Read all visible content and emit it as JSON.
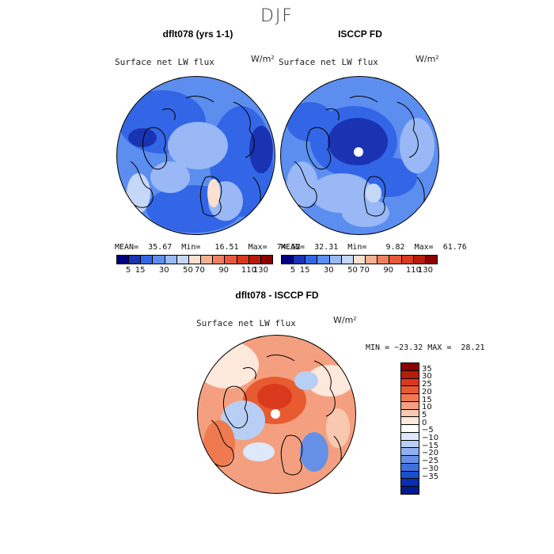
{
  "figure_title": "DJF",
  "units_label": "W/m²",
  "chart_data": [
    {
      "type": "heatmap",
      "projection": "north-polar-stereographic",
      "title": "dflt078 (yrs 1-1)",
      "variable": "Surface net LW flux",
      "units": "W/m²",
      "stats": {
        "mean": 35.67,
        "min": 16.51,
        "max": 74.52
      },
      "stats_text": "MEAN=  35.67  Min=   16.51  Max=  74.52",
      "colorbar_levels": [
        5,
        15,
        30,
        50,
        70,
        90,
        110,
        130
      ],
      "dominant_range": [
        30,
        50
      ]
    },
    {
      "type": "heatmap",
      "projection": "north-polar-stereographic",
      "title": "ISCCP FD",
      "variable": "Surface net LW flux",
      "units": "W/m²",
      "stats": {
        "mean": 32.31,
        "min": 9.82,
        "max": 61.76
      },
      "stats_text": "MEAN=  32.31  Min=    9.82  Max=  61.76",
      "colorbar_levels": [
        5,
        15,
        30,
        50,
        70,
        90,
        110,
        130
      ],
      "dominant_range": [
        15,
        50
      ]
    },
    {
      "type": "heatmap",
      "projection": "north-polar-stereographic",
      "title": "dflt078 - ISCCP FD",
      "variable": "Surface net LW flux",
      "units": "W/m²",
      "stats": {
        "min": -23.32,
        "max": 28.21
      },
      "stats_text": "MIN = −23.32 MAX =  28.21",
      "colorbar_levels": [
        35,
        30,
        25,
        20,
        15,
        10,
        5,
        0,
        -5,
        -10,
        -15,
        -20,
        -25,
        -30,
        -35
      ],
      "colorbar_labels": [
        "35",
        "30",
        "25",
        "20",
        "15",
        "10",
        "5",
        "0",
        "−5",
        "−10",
        "−15",
        "−20",
        "−25",
        "−30",
        "−35"
      ]
    }
  ],
  "colors": {
    "abs_scale": [
      "#000080",
      "#1a33b3",
      "#3366e6",
      "#5c8ef0",
      "#99b8f5",
      "#c6d8f8",
      "#fde0cf",
      "#f4b090",
      "#ee8060",
      "#e65a3c",
      "#d93a1e",
      "#b81c0a",
      "#8c0000"
    ],
    "diff_scale": [
      "#8c0000",
      "#b81c0a",
      "#d93a1e",
      "#e85a30",
      "#f07a50",
      "#f4a080",
      "#f8c8b0",
      "#fde8dc",
      "#ffffff",
      "#dde8fa",
      "#b8cff5",
      "#8fb0f0",
      "#6690e6",
      "#4070e0",
      "#1a4fd0",
      "#0830b0",
      "#001a90"
    ]
  }
}
